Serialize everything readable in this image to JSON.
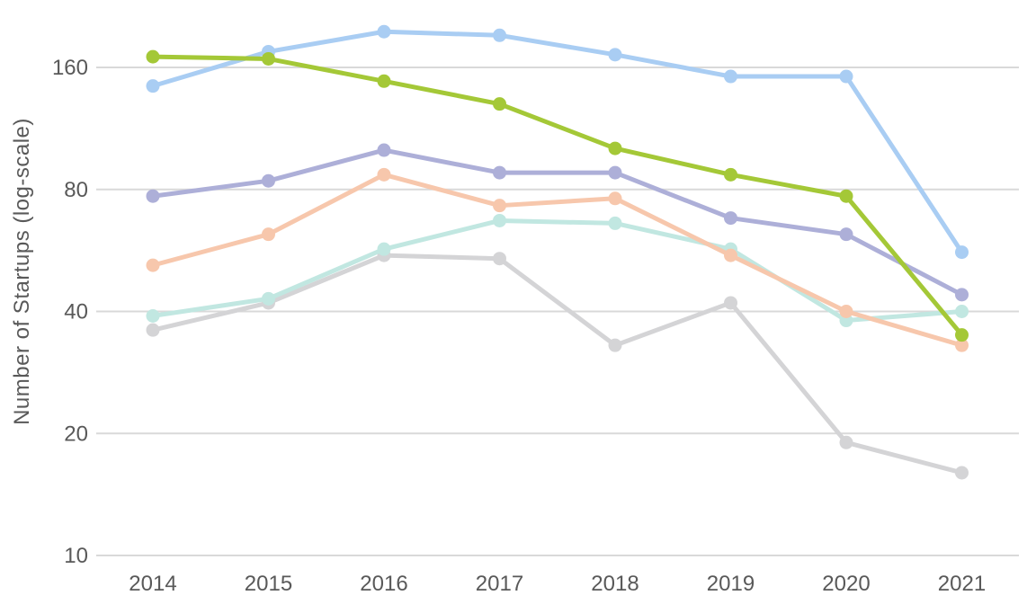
{
  "chart_data": {
    "type": "line",
    "title": "",
    "xlabel": "",
    "ylabel": "Number of Startups (log-scale)",
    "y_scale": "log2",
    "ylim": [
      10,
      200
    ],
    "y_ticks": [
      160,
      80,
      40,
      20,
      10
    ],
    "grid": "horizontal-only",
    "legend_position": "none",
    "markers": true,
    "categories": [
      "2014",
      "2015",
      "2016",
      "2017",
      "2018",
      "2019",
      "2020",
      "2021"
    ],
    "series": [
      {
        "name": "light-blue",
        "color": "#a9cdf3",
        "values": [
          144,
          175,
          196,
          192,
          172,
          152,
          152,
          56
        ]
      },
      {
        "name": "gray",
        "color": "#d4d4d6",
        "values": [
          36,
          42,
          55,
          54,
          33,
          42,
          19,
          16
        ]
      },
      {
        "name": "teal",
        "color": "#c1e7e1",
        "values": [
          39,
          43,
          57,
          67,
          66,
          57,
          38,
          40
        ]
      },
      {
        "name": "peach",
        "color": "#f7c7ac",
        "values": [
          52,
          62,
          87,
          73,
          76,
          55,
          40,
          33
        ]
      },
      {
        "name": "purple",
        "color": "#adafd8",
        "values": [
          77,
          84,
          100,
          88,
          88,
          68,
          62,
          44
        ]
      },
      {
        "name": "green",
        "color": "#a4c837",
        "values": [
          170,
          168,
          148,
          130,
          101,
          87,
          77,
          35
        ]
      }
    ]
  },
  "colors": {
    "background": "#ffffff",
    "gridline": "#d9d9d9",
    "tick_text": "#595959"
  }
}
